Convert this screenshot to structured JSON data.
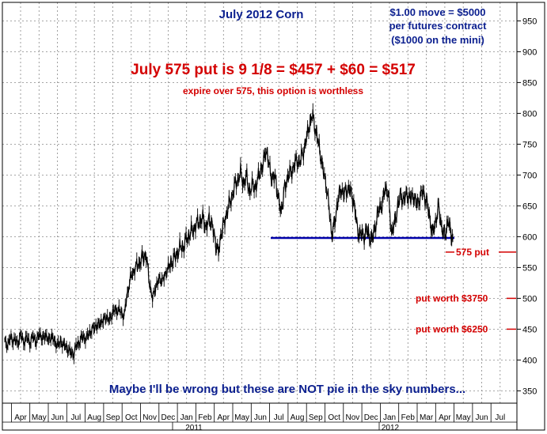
{
  "chart_data": {
    "type": "line",
    "title": "July 2012 Corn",
    "subtitle_lines": [
      "$1.00 move = $5000",
      "per futures contract",
      "($1000 on the mini)"
    ],
    "headline": "July 575 put is 9 1/8 = $457 + $60 = $517",
    "note": "expire over 575, this option is worthless",
    "footer": "Maybe I'll be wrong but these are NOT pie in the sky numbers...",
    "ylim": [
      330,
      980
    ],
    "y_ticks": [
      350,
      400,
      450,
      500,
      550,
      600,
      650,
      700,
      750,
      800,
      850,
      900,
      950
    ],
    "x_ticks": [
      "Apr",
      "May",
      "Jun",
      "Jul",
      "Aug",
      "Sep",
      "Oct",
      "Nov",
      "Dec",
      "Jan",
      "Feb",
      "Apr",
      "May",
      "Jun",
      "Jul",
      "Aug",
      "Sep",
      "Oct",
      "Nov",
      "Dec",
      "Jan",
      "Feb",
      "Mar",
      "Apr",
      "May",
      "Jun",
      "Jul"
    ],
    "year_labels": [
      "2011",
      "2012"
    ],
    "grid": true,
    "support_level": 598,
    "annotations": [
      {
        "label": "575 put",
        "y": 575
      },
      {
        "label": "put worth $3750",
        "y": 500
      },
      {
        "label": "put worth $6250",
        "y": 450
      }
    ],
    "series": [
      {
        "points": [
          [
            0,
            430
          ],
          [
            4,
            425
          ],
          [
            8,
            436
          ],
          [
            12,
            432
          ],
          [
            16,
            428
          ],
          [
            20,
            440
          ],
          [
            24,
            430
          ],
          [
            28,
            436
          ],
          [
            32,
            428
          ],
          [
            36,
            438
          ],
          [
            40,
            430
          ],
          [
            44,
            442
          ],
          [
            48,
            435
          ],
          [
            52,
            440
          ],
          [
            56,
            432
          ],
          [
            60,
            438
          ],
          [
            64,
            428
          ],
          [
            68,
            424
          ],
          [
            72,
            430
          ],
          [
            76,
            422
          ],
          [
            80,
            420
          ],
          [
            84,
            410
          ],
          [
            88,
            412
          ],
          [
            92,
            425
          ],
          [
            96,
            432
          ],
          [
            100,
            438
          ],
          [
            104,
            435
          ],
          [
            108,
            445
          ],
          [
            112,
            450
          ],
          [
            116,
            456
          ],
          [
            120,
            458
          ],
          [
            124,
            462
          ],
          [
            128,
            470
          ],
          [
            132,
            465
          ],
          [
            136,
            472
          ],
          [
            140,
            482
          ],
          [
            144,
            480
          ],
          [
            148,
            478
          ],
          [
            152,
            470
          ],
          [
            156,
            510
          ],
          [
            160,
            532
          ],
          [
            164,
            545
          ],
          [
            168,
            552
          ],
          [
            172,
            560
          ],
          [
            176,
            566
          ],
          [
            180,
            572
          ],
          [
            184,
            525
          ],
          [
            188,
            500
          ],
          [
            192,
            518
          ],
          [
            196,
            532
          ],
          [
            200,
            528
          ],
          [
            204,
            538
          ],
          [
            208,
            550
          ],
          [
            212,
            558
          ],
          [
            216,
            565
          ],
          [
            220,
            575
          ],
          [
            224,
            582
          ],
          [
            228,
            585
          ],
          [
            232,
            598
          ],
          [
            236,
            605
          ],
          [
            240,
            612
          ],
          [
            244,
            620
          ],
          [
            248,
            625
          ],
          [
            252,
            630
          ],
          [
            256,
            615
          ],
          [
            260,
            628
          ],
          [
            264,
            620
          ],
          [
            268,
            590
          ],
          [
            272,
            575
          ],
          [
            276,
            610
          ],
          [
            280,
            625
          ],
          [
            284,
            648
          ],
          [
            288,
            660
          ],
          [
            292,
            680
          ],
          [
            296,
            692
          ],
          [
            300,
            702
          ],
          [
            304,
            688
          ],
          [
            308,
            695
          ],
          [
            312,
            672
          ],
          [
            316,
            685
          ],
          [
            320,
            680
          ],
          [
            324,
            705
          ],
          [
            328,
            712
          ],
          [
            332,
            742
          ],
          [
            336,
            720
          ],
          [
            340,
            692
          ],
          [
            344,
            700
          ],
          [
            348,
            660
          ],
          [
            352,
            642
          ],
          [
            356,
            678
          ],
          [
            360,
            698
          ],
          [
            364,
            705
          ],
          [
            368,
            715
          ],
          [
            372,
            725
          ],
          [
            376,
            720
          ],
          [
            380,
            740
          ],
          [
            384,
            758
          ],
          [
            388,
            785
          ],
          [
            392,
            795
          ],
          [
            396,
            770
          ],
          [
            400,
            745
          ],
          [
            404,
            715
          ],
          [
            408,
            690
          ],
          [
            412,
            655
          ],
          [
            416,
            602
          ],
          [
            420,
            625
          ],
          [
            424,
            660
          ],
          [
            428,
            678
          ],
          [
            432,
            668
          ],
          [
            436,
            680
          ],
          [
            440,
            672
          ],
          [
            444,
            660
          ],
          [
            448,
            615
          ],
          [
            452,
            605
          ],
          [
            456,
            600
          ],
          [
            460,
            610
          ],
          [
            464,
            600
          ],
          [
            468,
            596
          ],
          [
            472,
            620
          ],
          [
            476,
            645
          ],
          [
            480,
            650
          ],
          [
            484,
            680
          ],
          [
            488,
            668
          ],
          [
            492,
            605
          ],
          [
            496,
            622
          ],
          [
            500,
            650
          ],
          [
            504,
            668
          ],
          [
            508,
            658
          ],
          [
            512,
            672
          ],
          [
            516,
            660
          ],
          [
            520,
            670
          ],
          [
            524,
            650
          ],
          [
            528,
            665
          ],
          [
            532,
            672
          ],
          [
            536,
            660
          ],
          [
            540,
            636
          ],
          [
            544,
            605
          ],
          [
            548,
            622
          ],
          [
            552,
            650
          ],
          [
            556,
            612
          ],
          [
            560,
            602
          ],
          [
            564,
            625
          ],
          [
            568,
            606
          ],
          [
            570,
            598
          ]
        ]
      }
    ]
  }
}
